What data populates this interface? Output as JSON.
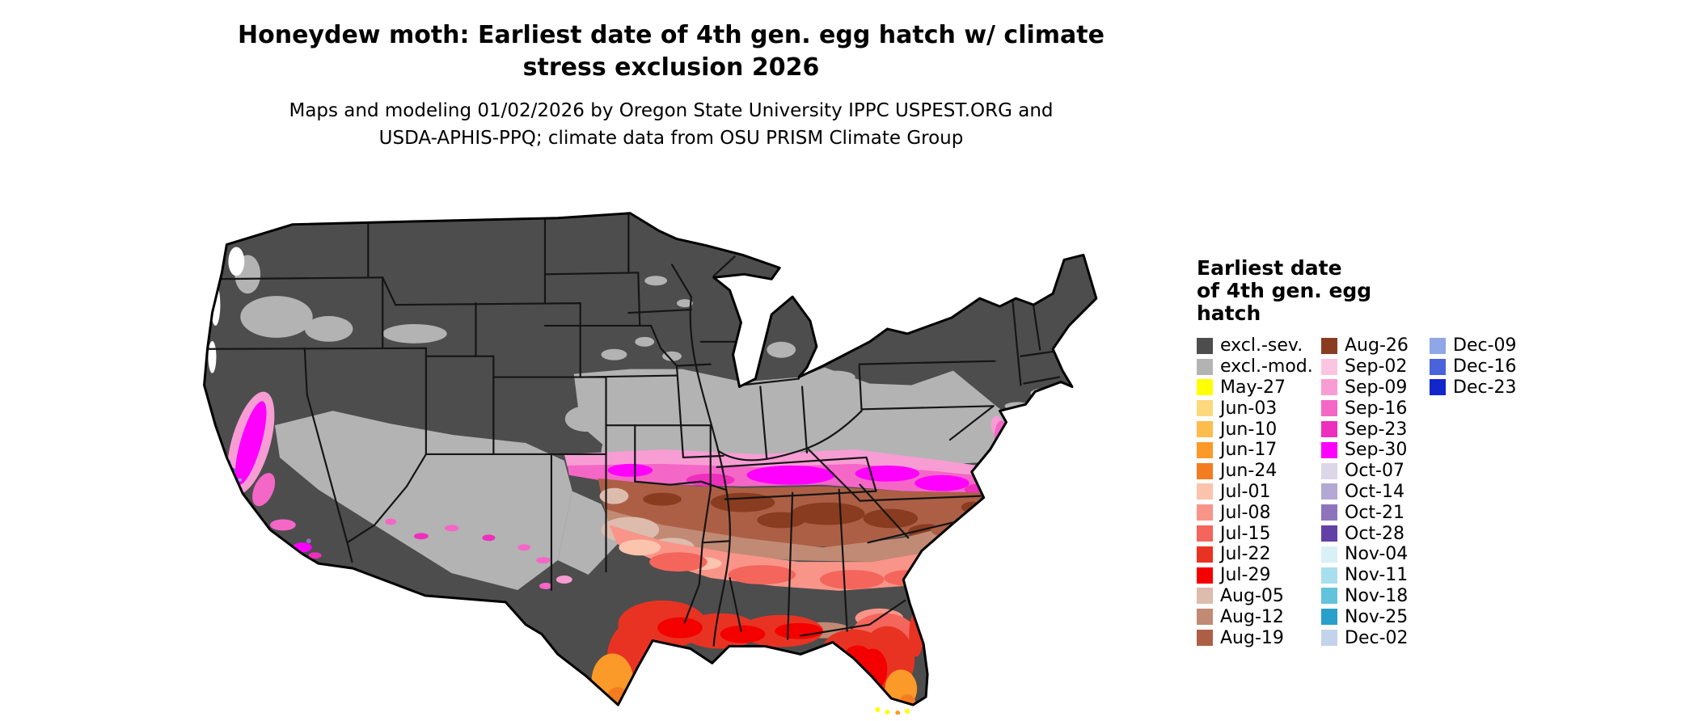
{
  "page": {
    "background": "#ffffff"
  },
  "title": {
    "line1": "Honeydew moth: Earliest date of 4th gen. egg hatch w/ climate",
    "line2": "stress exclusion 2026"
  },
  "subtitle": {
    "line1": "Maps and modeling 01/02/2026 by Oregon State University IPPC USPEST.ORG and",
    "line2": "USDA-APHIS-PPQ; climate data from OSU PRISM Climate Group"
  },
  "legend": {
    "title_lines": [
      "Earliest date",
      "of 4th gen. egg",
      "hatch"
    ],
    "columns": [
      {
        "entries": [
          {
            "label": "excl.-sev.",
            "color": "#4d4d4d"
          },
          {
            "label": "excl.-mod.",
            "color": "#b3b3b3"
          },
          {
            "label": "May-27",
            "color": "#ffff00"
          },
          {
            "label": "Jun-03",
            "color": "#fdd87c"
          },
          {
            "label": "Jun-10",
            "color": "#fdbd4d"
          },
          {
            "label": "Jun-17",
            "color": "#fb9a29"
          },
          {
            "label": "Jun-24",
            "color": "#f47c20"
          },
          {
            "label": "Jul-01",
            "color": "#fcc3ad"
          },
          {
            "label": "Jul-08",
            "color": "#f99489"
          },
          {
            "label": "Jul-15",
            "color": "#f4655c"
          },
          {
            "label": "Jul-22",
            "color": "#e83323"
          },
          {
            "label": "Jul-29",
            "color": "#f40000"
          },
          {
            "label": "Aug-05",
            "color": "#ddbcae"
          },
          {
            "label": "Aug-12",
            "color": "#c18a74"
          },
          {
            "label": "Aug-19",
            "color": "#ad5f46"
          }
        ]
      },
      {
        "entries": [
          {
            "label": "Aug-26",
            "color": "#8a3c20"
          },
          {
            "label": "Sep-02",
            "color": "#fbc5e2"
          },
          {
            "label": "Sep-09",
            "color": "#f79dd4"
          },
          {
            "label": "Sep-16",
            "color": "#f467c7"
          },
          {
            "label": "Sep-23",
            "color": "#ee2fbd"
          },
          {
            "label": "Sep-30",
            "color": "#ff00ff"
          },
          {
            "label": "Oct-07",
            "color": "#dcd6e8"
          },
          {
            "label": "Oct-14",
            "color": "#b4a8d4"
          },
          {
            "label": "Oct-21",
            "color": "#8d74bd"
          },
          {
            "label": "Oct-28",
            "color": "#6340a5"
          },
          {
            "label": "Nov-04",
            "color": "#d9f0f6"
          },
          {
            "label": "Nov-11",
            "color": "#a8dfee"
          },
          {
            "label": "Nov-18",
            "color": "#62c3dd"
          },
          {
            "label": "Nov-25",
            "color": "#28a0cb"
          },
          {
            "label": "Dec-02",
            "color": "#c3d3ea"
          }
        ]
      },
      {
        "entries": [
          {
            "label": "Dec-09",
            "color": "#8fa7e6"
          },
          {
            "label": "Dec-16",
            "color": "#4a63da"
          },
          {
            "label": "Dec-23",
            "color": "#1226cc"
          }
        ]
      }
    ]
  }
}
